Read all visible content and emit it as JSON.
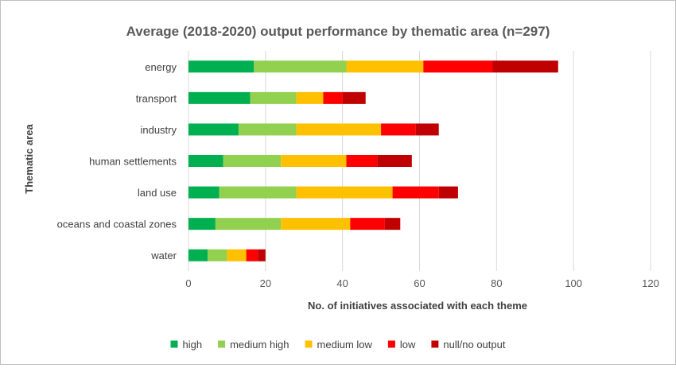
{
  "chart_data": {
    "type": "bar",
    "orientation": "horizontal",
    "stacked": true,
    "title": "Average (2018-2020) output performance by thematic area (n=297)",
    "xlabel": "No. of initiatives associated with each theme",
    "ylabel": "Thematic area",
    "xlim": [
      0,
      120
    ],
    "xticks": [
      0,
      20,
      40,
      60,
      80,
      100,
      120
    ],
    "grid": true,
    "legend_position": "bottom",
    "categories": [
      "energy",
      "transport",
      "industry",
      "human settlements",
      "land use",
      "oceans and coastal zones",
      "water"
    ],
    "series": [
      {
        "name": "high",
        "color": "#00b050",
        "values": [
          17,
          16,
          13,
          9,
          8,
          7,
          5
        ]
      },
      {
        "name": "medium high",
        "color": "#92d050",
        "values": [
          24,
          12,
          15,
          15,
          20,
          17,
          5
        ]
      },
      {
        "name": "medium low",
        "color": "#ffc000",
        "values": [
          20,
          7,
          22,
          17,
          25,
          18,
          5
        ]
      },
      {
        "name": "low",
        "color": "#ff0000",
        "values": [
          18,
          5,
          9,
          8,
          12,
          9,
          3
        ]
      },
      {
        "name": "null/no output",
        "color": "#c00000",
        "values": [
          17,
          6,
          6,
          9,
          5,
          4,
          2
        ]
      }
    ]
  }
}
